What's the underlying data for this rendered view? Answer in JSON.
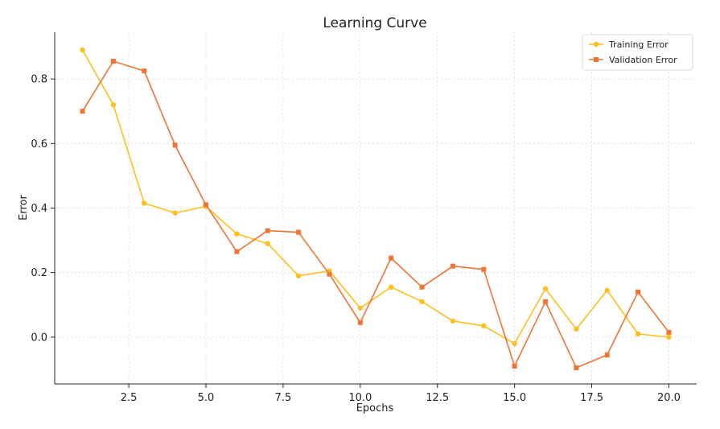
{
  "chart_data": {
    "type": "line",
    "title": "Learning Curve",
    "xlabel": "Epochs",
    "ylabel": "Error",
    "xlim": [
      0.1,
      20.9
    ],
    "ylim": [
      -0.145,
      0.945
    ],
    "grid": true,
    "legend_position": "top-right",
    "x_ticks": [
      2.5,
      5.0,
      7.5,
      10.0,
      12.5,
      15.0,
      17.5,
      20.0
    ],
    "x_tick_labels": [
      "2.5",
      "5.0",
      "7.5",
      "10.0",
      "12.5",
      "15.0",
      "17.5",
      "20.0"
    ],
    "y_ticks": [
      0.0,
      0.2,
      0.4,
      0.6,
      0.8
    ],
    "y_tick_labels": [
      "0.0",
      "0.2",
      "0.4",
      "0.6",
      "0.8"
    ],
    "x": [
      1,
      2,
      3,
      4,
      5,
      6,
      7,
      8,
      9,
      10,
      11,
      12,
      13,
      14,
      15,
      16,
      17,
      18,
      19,
      20
    ],
    "series": [
      {
        "name": "Training Error",
        "color": "#FFBF1F",
        "marker": "circle",
        "values": [
          0.89,
          0.72,
          0.415,
          0.385,
          0.405,
          0.32,
          0.29,
          0.19,
          0.205,
          0.09,
          0.155,
          0.11,
          0.05,
          0.035,
          -0.02,
          0.15,
          0.025,
          0.145,
          0.01,
          0.0
        ]
      },
      {
        "name": "Validation Error",
        "color": "#F07433",
        "marker": "square",
        "values": [
          0.7,
          0.855,
          0.825,
          0.595,
          0.41,
          0.265,
          0.33,
          0.325,
          0.195,
          0.045,
          0.245,
          0.155,
          0.22,
          0.21,
          -0.09,
          0.11,
          -0.095,
          -0.055,
          0.14,
          0.015
        ]
      }
    ]
  }
}
